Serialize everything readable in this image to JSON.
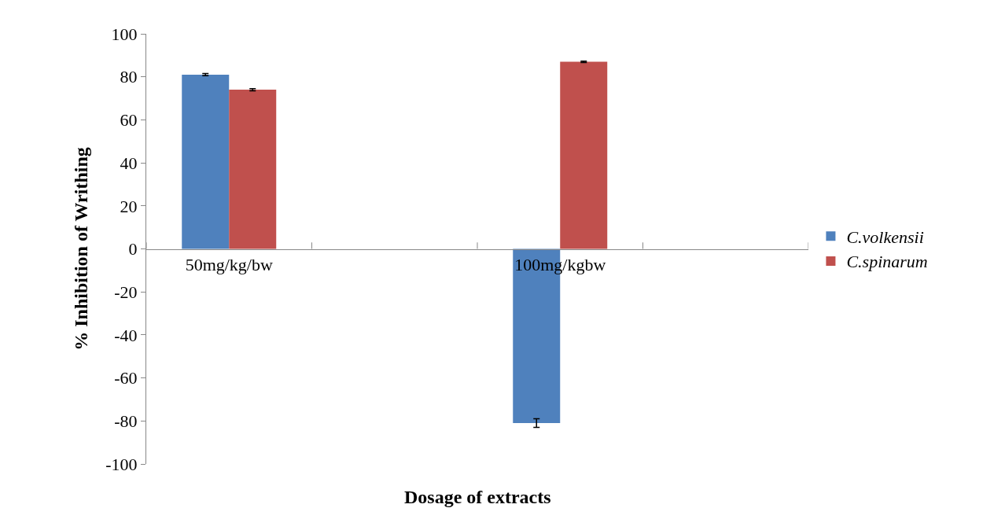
{
  "chart_data": {
    "type": "bar",
    "xlabel": "Dosage of extracts",
    "ylabel": "% Inhibition of Writhing",
    "categories": [
      "50mg/kg/bw",
      null,
      "100mg/kgbw",
      null
    ],
    "series": [
      {
        "name": "C.volkensii",
        "color": "#4f81bd",
        "values": [
          81,
          null,
          -81,
          null
        ],
        "errors": [
          0.5,
          null,
          2,
          null
        ]
      },
      {
        "name": "C.spinarum",
        "color": "#c0504d",
        "values": [
          74,
          null,
          87,
          null
        ],
        "errors": [
          0.5,
          null,
          0.3,
          null
        ]
      }
    ],
    "ylim": [
      -100,
      100
    ],
    "yticks": [
      -100,
      -80,
      -60,
      -40,
      -20,
      0,
      20,
      40,
      60,
      80,
      100
    ],
    "legend": "right"
  }
}
